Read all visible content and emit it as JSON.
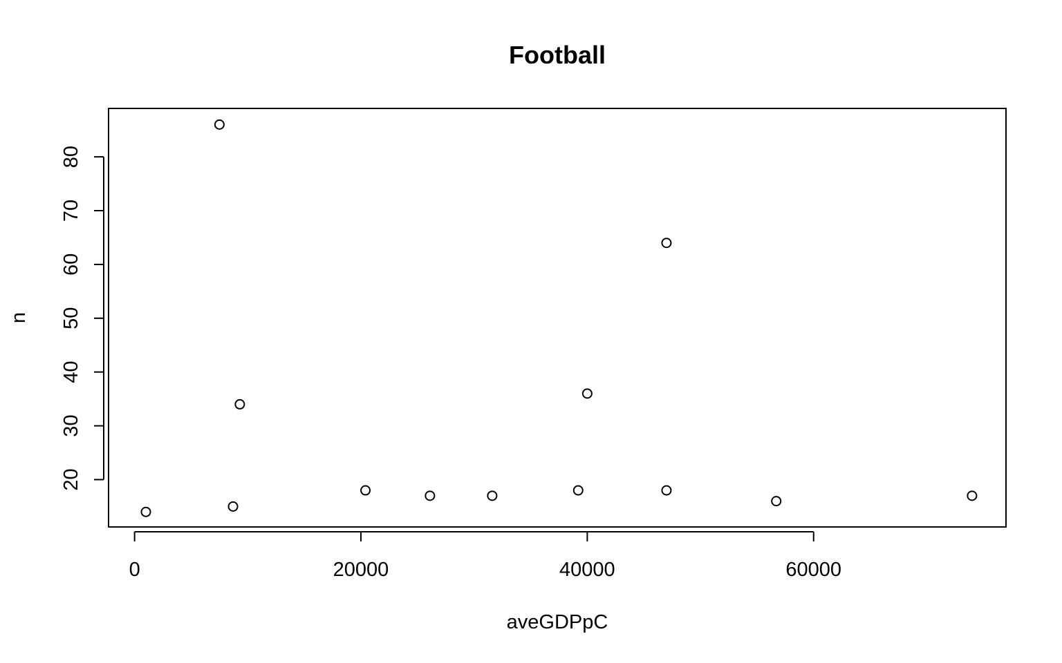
{
  "chart_data": {
    "type": "scatter",
    "title": "Football",
    "xlabel": "aveGDPpC",
    "ylabel": "n",
    "xlim": [
      -2300,
      77000
    ],
    "ylim": [
      11.2,
      89
    ],
    "x_ticks": [
      0,
      20000,
      40000,
      60000
    ],
    "y_ticks": [
      20,
      30,
      40,
      50,
      60,
      70,
      80
    ],
    "x_tick_labels": [
      "0",
      "20000",
      "40000",
      "60000"
    ],
    "y_tick_labels": [
      "20",
      "30",
      "40",
      "50",
      "60",
      "70",
      "80"
    ],
    "grid": false,
    "legend": "none",
    "points": [
      {
        "x": 1000,
        "y": 14
      },
      {
        "x": 7500,
        "y": 86
      },
      {
        "x": 8700,
        "y": 15
      },
      {
        "x": 9300,
        "y": 34
      },
      {
        "x": 20400,
        "y": 18
      },
      {
        "x": 26100,
        "y": 17
      },
      {
        "x": 31600,
        "y": 17
      },
      {
        "x": 39200,
        "y": 18
      },
      {
        "x": 40000,
        "y": 36
      },
      {
        "x": 47000,
        "y": 64
      },
      {
        "x": 47000,
        "y": 18
      },
      {
        "x": 56700,
        "y": 16
      },
      {
        "x": 74000,
        "y": 17
      }
    ]
  }
}
